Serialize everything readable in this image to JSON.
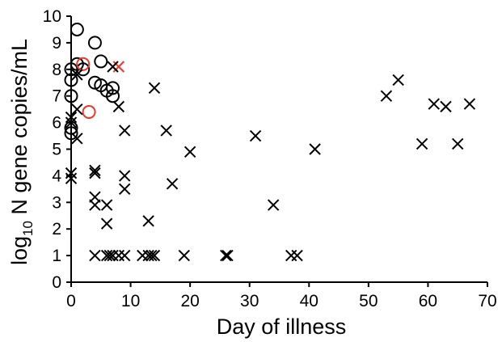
{
  "chart_data": {
    "type": "scatter",
    "title": "",
    "xlabel": "Day of illness",
    "ylabel_main": "log",
    "ylabel_sub": "10",
    "ylabel_rest": " N gene copies/mL",
    "xlim": [
      0,
      70
    ],
    "ylim": [
      0,
      10
    ],
    "xticks": [
      "0",
      "10",
      "20",
      "30",
      "40",
      "50",
      "60",
      "70"
    ],
    "yticks": [
      "0",
      "1",
      "2",
      "3",
      "4",
      "5",
      "6",
      "7",
      "8",
      "9",
      "10"
    ],
    "grid": false,
    "legend": "none",
    "series": [
      {
        "marker": "circle",
        "color": "#000000",
        "points": [
          [
            1,
            9.5
          ],
          [
            0,
            8.0
          ],
          [
            1,
            8.2
          ],
          [
            2,
            8.0
          ],
          [
            0,
            7.6
          ],
          [
            0,
            7.0
          ],
          [
            0,
            5.8
          ],
          [
            0,
            5.6
          ],
          [
            4,
            9.0
          ],
          [
            5,
            8.3
          ],
          [
            4,
            7.5
          ],
          [
            5,
            7.4
          ],
          [
            6,
            7.2
          ],
          [
            7,
            7.0
          ],
          [
            7,
            7.3
          ]
        ]
      },
      {
        "marker": "circle",
        "color": "#e8382c",
        "points": [
          [
            2,
            8.2
          ],
          [
            3,
            6.4
          ]
        ]
      },
      {
        "marker": "x",
        "color": "#e8382c",
        "points": [
          [
            8,
            8.1
          ]
        ]
      },
      {
        "marker": "x",
        "color": "#000000",
        "points": [
          [
            1,
            7.8
          ],
          [
            0,
            6.2
          ],
          [
            0,
            6.0
          ],
          [
            1,
            6.5
          ],
          [
            1,
            5.4
          ],
          [
            0,
            4.1
          ],
          [
            0,
            3.9
          ],
          [
            4,
            4.2
          ],
          [
            4,
            4.1
          ],
          [
            4,
            3.2
          ],
          [
            4,
            2.9
          ],
          [
            6,
            2.9
          ],
          [
            6,
            2.2
          ],
          [
            9,
            4.0
          ],
          [
            9,
            3.5
          ],
          [
            9,
            5.7
          ],
          [
            8,
            6.6
          ],
          [
            7,
            8.1
          ],
          [
            14,
            7.3
          ],
          [
            16,
            5.7
          ],
          [
            17,
            3.7
          ],
          [
            20,
            4.9
          ],
          [
            13,
            2.3
          ],
          [
            31,
            5.5
          ],
          [
            34,
            2.9
          ],
          [
            41,
            5.0
          ],
          [
            53,
            7.0
          ],
          [
            55,
            7.6
          ],
          [
            59,
            5.2
          ],
          [
            61,
            6.7
          ],
          [
            63,
            6.6
          ],
          [
            65,
            5.2
          ],
          [
            67,
            6.7
          ],
          [
            4,
            1.0
          ],
          [
            6,
            1.0
          ],
          [
            6.5,
            1.0
          ],
          [
            7,
            1.0
          ],
          [
            8,
            1.0
          ],
          [
            9,
            1.0
          ],
          [
            12,
            1.0
          ],
          [
            13,
            1.0
          ],
          [
            13.5,
            1.0
          ],
          [
            14,
            1.0
          ],
          [
            19,
            1.0
          ],
          [
            26,
            1.0
          ],
          [
            26.3,
            1.0
          ],
          [
            37,
            1.0
          ],
          [
            38,
            1.0
          ]
        ]
      }
    ]
  }
}
